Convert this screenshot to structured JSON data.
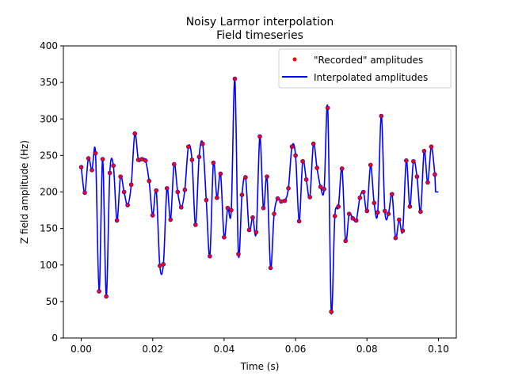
{
  "chart_data": {
    "type": "line",
    "title": "Noisy Larmor interpolation",
    "subtitle": "Field timeseries",
    "xlabel": "Time (s)",
    "ylabel": "Z field amplitude (Hz)",
    "xlim": [
      -0.005,
      0.105
    ],
    "ylim": [
      0,
      400
    ],
    "xticks": [
      0.0,
      0.02,
      0.04,
      0.06,
      0.08,
      0.1
    ],
    "xtick_labels": [
      "0.00",
      "0.02",
      "0.04",
      "0.06",
      "0.08",
      "0.10"
    ],
    "yticks": [
      0,
      50,
      100,
      150,
      200,
      250,
      300,
      350,
      400
    ],
    "ytick_labels": [
      "0",
      "50",
      "100",
      "150",
      "200",
      "250",
      "300",
      "350",
      "400"
    ],
    "grid": false,
    "legend": "upper-right",
    "series": [
      {
        "name": "\"Recorded\" amplitudes",
        "kind": "scatter",
        "color": "#ff0000",
        "edge_color": "#0000ff",
        "x": [
          0.0,
          0.001,
          0.002,
          0.003,
          0.004,
          0.005,
          0.006,
          0.007,
          0.008,
          0.009,
          0.01,
          0.011,
          0.012,
          0.013,
          0.014,
          0.015,
          0.016,
          0.017,
          0.018,
          0.019,
          0.02,
          0.021,
          0.022,
          0.023,
          0.024,
          0.025,
          0.026,
          0.027,
          0.028,
          0.029,
          0.03,
          0.031,
          0.032,
          0.033,
          0.034,
          0.035,
          0.036,
          0.037,
          0.038,
          0.039,
          0.04,
          0.041,
          0.042,
          0.043,
          0.044,
          0.045,
          0.046,
          0.047,
          0.048,
          0.049,
          0.05,
          0.051,
          0.052,
          0.053,
          0.054,
          0.055,
          0.056,
          0.057,
          0.058,
          0.059,
          0.06,
          0.061,
          0.062,
          0.063,
          0.064,
          0.065,
          0.066,
          0.067,
          0.068,
          0.069,
          0.07,
          0.071,
          0.072,
          0.073,
          0.074,
          0.075,
          0.076,
          0.077,
          0.078,
          0.079,
          0.08,
          0.081,
          0.082,
          0.083,
          0.084,
          0.085,
          0.086,
          0.087,
          0.088,
          0.089,
          0.09,
          0.091,
          0.092,
          0.093,
          0.094,
          0.095,
          0.096,
          0.097,
          0.098,
          0.099
        ],
        "y": [
          234,
          199,
          246,
          230,
          253,
          64,
          245,
          57,
          226,
          236,
          161,
          221,
          200,
          182,
          210,
          280,
          244,
          245,
          243,
          215,
          168,
          202,
          99,
          101,
          205,
          162,
          238,
          200,
          179,
          203,
          262,
          244,
          155,
          248,
          266,
          189,
          112,
          240,
          192,
          225,
          138,
          178,
          175,
          355,
          115,
          196,
          220,
          148,
          165,
          145,
          276,
          178,
          221,
          96,
          170,
          191,
          187,
          188,
          205,
          262,
          250,
          160,
          242,
          217,
          193,
          266,
          233,
          207,
          204,
          315,
          36,
          167,
          180,
          232,
          133,
          170,
          164,
          161,
          192,
          200,
          174,
          237,
          185,
          172,
          304,
          174,
          170,
          197,
          137,
          162,
          147,
          243,
          180,
          242,
          221,
          173,
          256,
          213,
          262,
          224
        ]
      },
      {
        "name": "Interpolated amplitudes",
        "kind": "line",
        "color": "#0000ff",
        "end_x": 0.1,
        "end_y": 200
      }
    ]
  }
}
